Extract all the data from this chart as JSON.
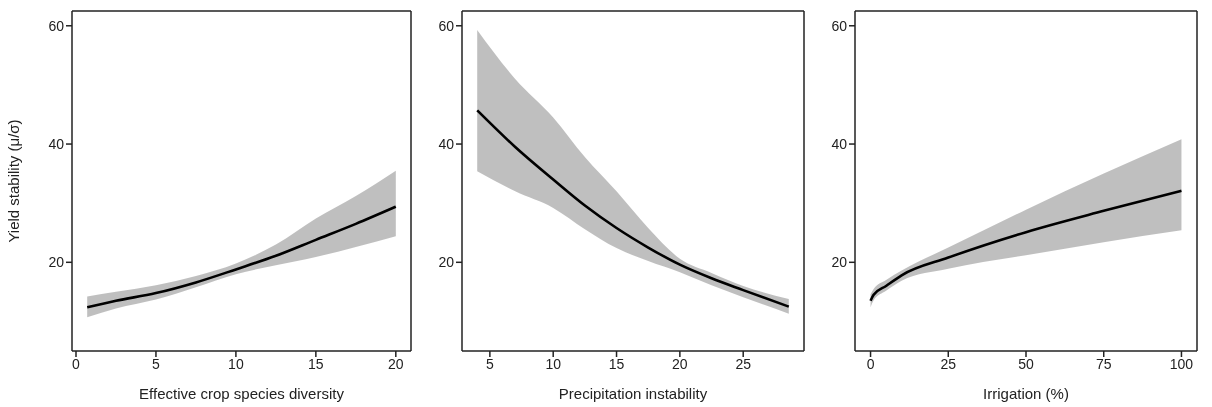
{
  "chart_data": [
    {
      "type": "line",
      "xlabel": "Effective crop species diversity",
      "ylabel": "Yield stability (μ/σ)",
      "x": [
        0.7,
        2.5,
        5,
        7.5,
        10,
        12.5,
        15,
        17.5,
        20
      ],
      "xlim": [
        -0.25,
        20.95
      ],
      "xticks": [
        0,
        5,
        10,
        15,
        20
      ],
      "ylim": [
        5,
        62.5
      ],
      "yticks": [
        20,
        40,
        60
      ],
      "grid": false,
      "legend": false,
      "series": [
        {
          "color": "#000000",
          "values": [
            12.4,
            13.5,
            14.8,
            16.6,
            18.8,
            21.1,
            23.8,
            26.5,
            29.4
          ],
          "lower": [
            10.7,
            12.2,
            13.7,
            15.8,
            18.0,
            19.5,
            20.9,
            22.6,
            24.4
          ],
          "upper": [
            14.2,
            15.0,
            16.1,
            17.7,
            19.8,
            23.0,
            27.4,
            31.2,
            35.5
          ]
        }
      ]
    },
    {
      "type": "line",
      "xlabel": "Precipitation instability",
      "x": [
        4,
        7,
        10,
        12.5,
        15,
        17.5,
        20,
        22.5,
        25,
        28.6
      ],
      "xlim": [
        2.8,
        29.8
      ],
      "xticks": [
        5,
        10,
        15,
        20,
        25
      ],
      "ylim": [
        5,
        62.5
      ],
      "yticks": [
        20,
        40,
        60
      ],
      "grid": false,
      "legend": false,
      "series": [
        {
          "color": "#000000",
          "values": [
            45.7,
            39.5,
            34.0,
            29.6,
            25.8,
            22.5,
            19.6,
            17.3,
            15.3,
            12.5
          ],
          "lower": [
            35.4,
            32.0,
            29.2,
            25.6,
            22.4,
            20.2,
            18.3,
            16.1,
            14.1,
            11.3
          ],
          "upper": [
            59.3,
            51.0,
            44.5,
            37.8,
            32.0,
            25.8,
            20.6,
            18.2,
            16.0,
            13.8
          ]
        }
      ]
    },
    {
      "type": "line",
      "xlabel": "Irrigation (%)",
      "x": [
        0,
        1,
        5,
        10,
        25,
        50,
        75,
        100
      ],
      "xlim": [
        -5,
        105
      ],
      "xticks": [
        0,
        25,
        50,
        75,
        100
      ],
      "ylim": [
        5,
        62.5
      ],
      "yticks": [
        20,
        40,
        60
      ],
      "grid": false,
      "legend": false,
      "series": [
        {
          "color": "#000000",
          "values": [
            13.5,
            14.5,
            16.0,
            17.8,
            20.8,
            25.1,
            28.7,
            32.1
          ],
          "lower": [
            12.4,
            13.6,
            15.2,
            16.9,
            18.9,
            21.2,
            23.4,
            25.4
          ],
          "upper": [
            14.6,
            15.5,
            17.0,
            18.6,
            22.5,
            28.9,
            35.0,
            40.8
          ]
        }
      ]
    }
  ]
}
